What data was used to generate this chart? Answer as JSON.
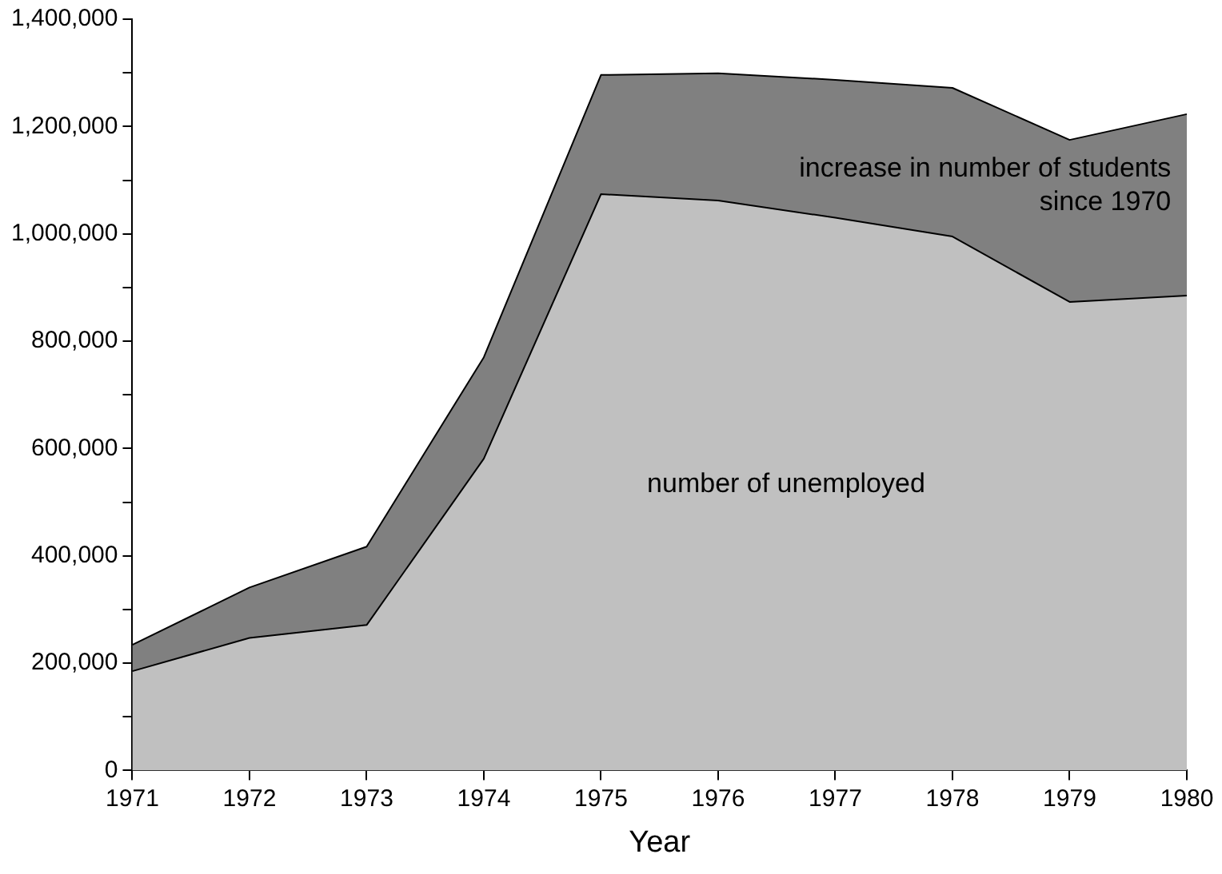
{
  "chart_data": {
    "type": "area",
    "stacked": true,
    "xlabel": "Year",
    "categories": [
      "1971",
      "1972",
      "1973",
      "1974",
      "1975",
      "1976",
      "1977",
      "1978",
      "1979",
      "1980"
    ],
    "series": [
      {
        "name": "number of unemployed",
        "color": "#c0c0c0",
        "values": [
          185000,
          247000,
          271000,
          581000,
          1074000,
          1062000,
          1030000,
          995000,
          873000,
          885000
        ]
      },
      {
        "name": "increase in number of students since 1970",
        "color": "#808080",
        "values": [
          49000,
          94000,
          146000,
          189000,
          222000,
          237000,
          257000,
          277000,
          302000,
          338000
        ]
      }
    ],
    "ylim": [
      0,
      1400000
    ],
    "yticks": [
      {
        "value": 0,
        "label": "0"
      },
      {
        "value": 100000,
        "label": null
      },
      {
        "value": 200000,
        "label": "200,000"
      },
      {
        "value": 300000,
        "label": null
      },
      {
        "value": 400000,
        "label": "400,000"
      },
      {
        "value": 500000,
        "label": null
      },
      {
        "value": 600000,
        "label": "600,000"
      },
      {
        "value": 700000,
        "label": null
      },
      {
        "value": 800000,
        "label": "800,000"
      },
      {
        "value": 900000,
        "label": null
      },
      {
        "value": 1000000,
        "label": "1,000,000"
      },
      {
        "value": 1100000,
        "label": null
      },
      {
        "value": 1200000,
        "label": "1,200,000"
      },
      {
        "value": 1300000,
        "label": null
      },
      {
        "value": 1400000,
        "label": "1,400,000"
      }
    ],
    "grid": false,
    "legend": false
  }
}
